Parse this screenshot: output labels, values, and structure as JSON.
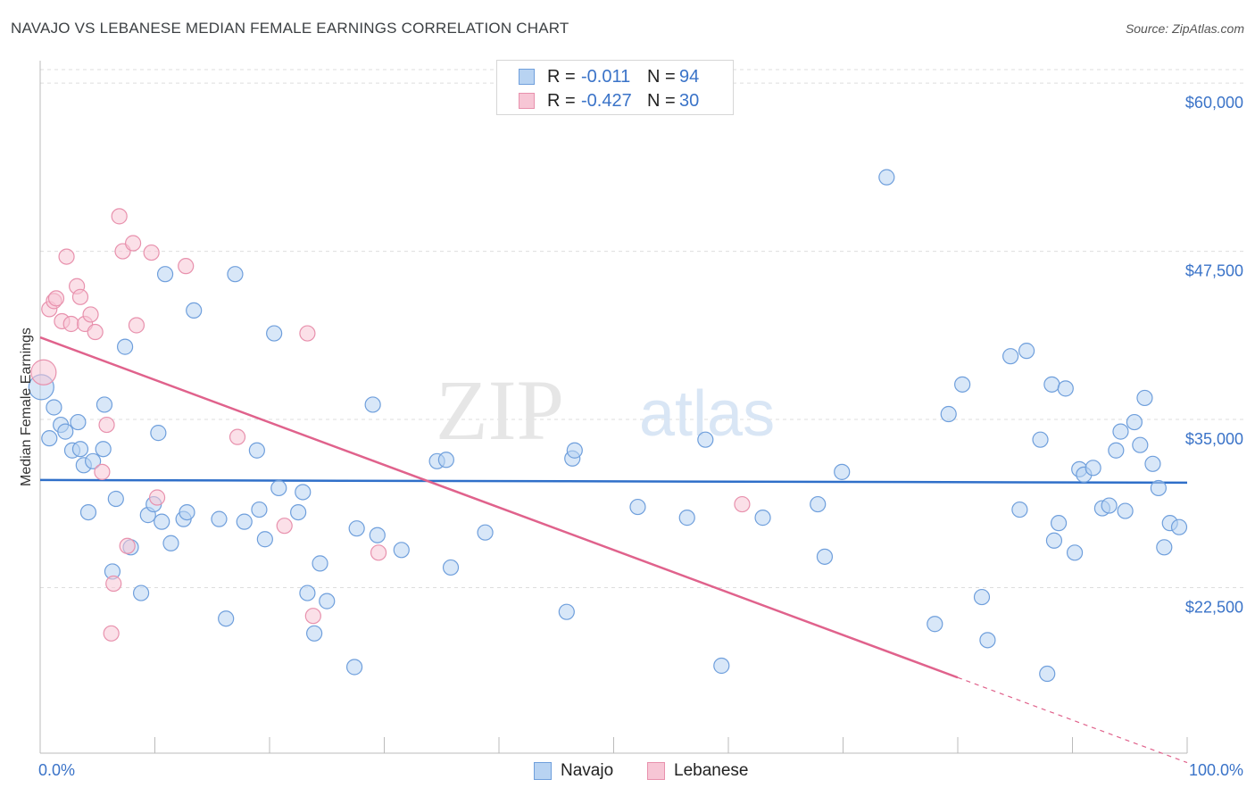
{
  "header": {
    "title": "NAVAJO VS LEBANESE MEDIAN FEMALE EARNINGS CORRELATION CHART",
    "source": "Source: ZipAtlas.com"
  },
  "watermark": {
    "zip": "ZIP",
    "atlas": "atlas"
  },
  "legend": {
    "navajo": {
      "r_label": "R =",
      "r_value": "-0.011",
      "n_label": "N =",
      "n_value": "94"
    },
    "lebanese": {
      "r_label": "R =",
      "r_value": "-0.427",
      "n_label": "N =",
      "n_value": "30"
    }
  },
  "colors": {
    "navajo_fill": "#b8d3f2",
    "navajo_stroke": "#6f9fdc",
    "navajo_line": "#2f6fc9",
    "lebanese_fill": "#f7c6d5",
    "lebanese_stroke": "#e891ad",
    "lebanese_line": "#e0628c",
    "tick_label": "#3a73c8",
    "grid": "#dddddd"
  },
  "chart_data": {
    "type": "scatter",
    "title": "NAVAJO VS LEBANESE MEDIAN FEMALE EARNINGS CORRELATION CHART",
    "ylabel": "Median Female Earnings",
    "xlabel": "",
    "x_tick_labels": [
      "0.0%",
      "100.0%"
    ],
    "y_ticks": [
      22500,
      35000,
      47500,
      60000
    ],
    "y_tick_labels": [
      "$22,500",
      "$35,000",
      "$47,500",
      "$60,000"
    ],
    "xlim": [
      0,
      100
    ],
    "ylim": [
      10200,
      61000
    ],
    "grid": true,
    "legend_position": "bottom",
    "series": [
      {
        "name": "Navajo",
        "points": [
          [
            0.1,
            37.4
          ],
          [
            1.2,
            35.9
          ],
          [
            0.8,
            33.6
          ],
          [
            1.8,
            34.6
          ],
          [
            2.2,
            34.1
          ],
          [
            3.3,
            34.8
          ],
          [
            2.8,
            32.7
          ],
          [
            3.5,
            32.8
          ],
          [
            3.8,
            31.6
          ],
          [
            4.6,
            31.9
          ],
          [
            4.2,
            28.1
          ],
          [
            5.6,
            36.1
          ],
          [
            5.5,
            32.8
          ],
          [
            6.6,
            29.1
          ],
          [
            7.4,
            40.4
          ],
          [
            7.9,
            25.5
          ],
          [
            6.3,
            23.7
          ],
          [
            8.8,
            22.1
          ],
          [
            9.4,
            27.9
          ],
          [
            9.9,
            28.7
          ],
          [
            10.3,
            34.0
          ],
          [
            10.6,
            27.4
          ],
          [
            10.9,
            45.8
          ],
          [
            11.4,
            25.8
          ],
          [
            12.5,
            27.6
          ],
          [
            12.8,
            28.1
          ],
          [
            13.4,
            43.1
          ],
          [
            15.6,
            27.6
          ],
          [
            16.2,
            20.2
          ],
          [
            17.0,
            45.8
          ],
          [
            17.8,
            27.4
          ],
          [
            18.9,
            32.7
          ],
          [
            19.1,
            28.3
          ],
          [
            19.6,
            26.1
          ],
          [
            20.4,
            41.4
          ],
          [
            20.8,
            29.9
          ],
          [
            22.5,
            28.1
          ],
          [
            22.9,
            29.6
          ],
          [
            23.3,
            22.1
          ],
          [
            23.9,
            19.1
          ],
          [
            24.4,
            24.3
          ],
          [
            25.0,
            21.5
          ],
          [
            27.4,
            16.6
          ],
          [
            27.6,
            26.9
          ],
          [
            29.0,
            36.1
          ],
          [
            29.4,
            26.4
          ],
          [
            31.5,
            25.3
          ],
          [
            34.6,
            31.9
          ],
          [
            35.4,
            32.0
          ],
          [
            35.8,
            24.0
          ],
          [
            38.8,
            26.6
          ],
          [
            46.4,
            32.1
          ],
          [
            46.6,
            32.7
          ],
          [
            45.9,
            20.7
          ],
          [
            52.1,
            28.5
          ],
          [
            56.4,
            27.7
          ],
          [
            58.0,
            33.5
          ],
          [
            59.4,
            16.7
          ],
          [
            63.0,
            27.7
          ],
          [
            67.8,
            28.7
          ],
          [
            68.4,
            24.8
          ],
          [
            69.9,
            31.1
          ],
          [
            73.8,
            53.0
          ],
          [
            78.0,
            19.8
          ],
          [
            79.2,
            35.4
          ],
          [
            80.4,
            37.6
          ],
          [
            82.1,
            21.8
          ],
          [
            82.6,
            18.6
          ],
          [
            84.6,
            39.7
          ],
          [
            85.4,
            28.3
          ],
          [
            86.0,
            40.1
          ],
          [
            87.2,
            33.5
          ],
          [
            87.8,
            16.1
          ],
          [
            88.2,
            37.6
          ],
          [
            88.8,
            27.3
          ],
          [
            88.4,
            26.0
          ],
          [
            89.4,
            37.3
          ],
          [
            90.2,
            25.1
          ],
          [
            90.6,
            31.3
          ],
          [
            91.0,
            30.9
          ],
          [
            91.8,
            31.4
          ],
          [
            92.6,
            28.4
          ],
          [
            93.2,
            28.6
          ],
          [
            93.8,
            32.7
          ],
          [
            94.2,
            34.1
          ],
          [
            94.6,
            28.2
          ],
          [
            95.4,
            34.8
          ],
          [
            95.9,
            33.1
          ],
          [
            96.3,
            36.6
          ],
          [
            97.0,
            31.7
          ],
          [
            97.5,
            29.9
          ],
          [
            98.0,
            25.5
          ],
          [
            98.5,
            27.3
          ],
          [
            99.3,
            27.0
          ]
        ]
      },
      {
        "name": "Lebanese",
        "points": [
          [
            0.3,
            38.5
          ],
          [
            0.8,
            43.2
          ],
          [
            1.2,
            43.8
          ],
          [
            1.4,
            44.0
          ],
          [
            1.9,
            42.3
          ],
          [
            2.3,
            47.1
          ],
          [
            2.7,
            42.1
          ],
          [
            3.2,
            44.9
          ],
          [
            3.5,
            44.1
          ],
          [
            3.9,
            42.1
          ],
          [
            4.4,
            42.8
          ],
          [
            4.8,
            41.5
          ],
          [
            5.4,
            31.1
          ],
          [
            5.8,
            34.6
          ],
          [
            6.4,
            22.8
          ],
          [
            6.2,
            19.1
          ],
          [
            6.9,
            50.1
          ],
          [
            7.2,
            47.5
          ],
          [
            7.6,
            25.6
          ],
          [
            8.1,
            48.1
          ],
          [
            8.4,
            42.0
          ],
          [
            9.7,
            47.4
          ],
          [
            10.2,
            29.2
          ],
          [
            12.7,
            46.4
          ],
          [
            17.2,
            33.7
          ],
          [
            21.3,
            27.1
          ],
          [
            23.3,
            41.4
          ],
          [
            23.8,
            20.4
          ],
          [
            29.5,
            25.1
          ],
          [
            61.2,
            28.7
          ]
        ]
      }
    ],
    "trend_lines": [
      {
        "series": "Navajo",
        "x": [
          0,
          100
        ],
        "y": [
          30500,
          30300
        ]
      },
      {
        "series": "Lebanese",
        "x": [
          0,
          100
        ],
        "y": [
          41100,
          9500
        ],
        "solid_until_x": 80
      }
    ]
  },
  "bottom_legend": {
    "navajo": "Navajo",
    "lebanese": "Lebanese"
  }
}
